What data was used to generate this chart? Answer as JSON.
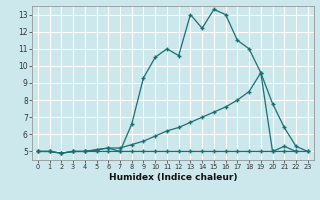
{
  "xlabel": "Humidex (Indice chaleur)",
  "xlim": [
    -0.5,
    23.5
  ],
  "ylim": [
    4.5,
    13.5
  ],
  "yticks": [
    5,
    6,
    7,
    8,
    9,
    10,
    11,
    12,
    13
  ],
  "xticks": [
    0,
    1,
    2,
    3,
    4,
    5,
    6,
    7,
    8,
    9,
    10,
    11,
    12,
    13,
    14,
    15,
    16,
    17,
    18,
    19,
    20,
    21,
    22,
    23
  ],
  "bg_color": "#cce8ec",
  "grid_color": "#ffffff",
  "line_color": "#1a7070",
  "line1_x": [
    0,
    1,
    2,
    3,
    4,
    5,
    6,
    7,
    8,
    9,
    10,
    11,
    12,
    13,
    14,
    15,
    16,
    17,
    18,
    19,
    20,
    21,
    22,
    23
  ],
  "line1_y": [
    5.0,
    5.0,
    4.9,
    5.0,
    5.0,
    5.0,
    5.0,
    5.0,
    5.0,
    5.0,
    5.0,
    5.0,
    5.0,
    5.0,
    5.0,
    5.0,
    5.0,
    5.0,
    5.0,
    5.0,
    5.0,
    5.0,
    5.0,
    5.0
  ],
  "line2_x": [
    0,
    1,
    2,
    3,
    4,
    5,
    6,
    7,
    8,
    9,
    10,
    11,
    12,
    13,
    14,
    15,
    16,
    17,
    18,
    19,
    20,
    21,
    22,
    23
  ],
  "line2_y": [
    5.0,
    5.0,
    4.9,
    5.0,
    5.0,
    5.1,
    5.2,
    5.2,
    5.4,
    5.6,
    5.9,
    6.2,
    6.4,
    6.7,
    7.0,
    7.3,
    7.6,
    8.0,
    8.5,
    9.6,
    7.8,
    6.4,
    5.3,
    5.0
  ],
  "line3_x": [
    0,
    1,
    2,
    3,
    4,
    5,
    6,
    7,
    8,
    9,
    10,
    11,
    12,
    13,
    14,
    15,
    16,
    17,
    18,
    19,
    20,
    21,
    22
  ],
  "line3_y": [
    5.0,
    5.0,
    4.9,
    5.0,
    5.0,
    5.1,
    5.2,
    5.0,
    6.6,
    9.3,
    10.5,
    11.0,
    10.6,
    13.0,
    12.2,
    13.3,
    13.0,
    11.5,
    11.0,
    9.6,
    5.0,
    5.3,
    5.0
  ]
}
